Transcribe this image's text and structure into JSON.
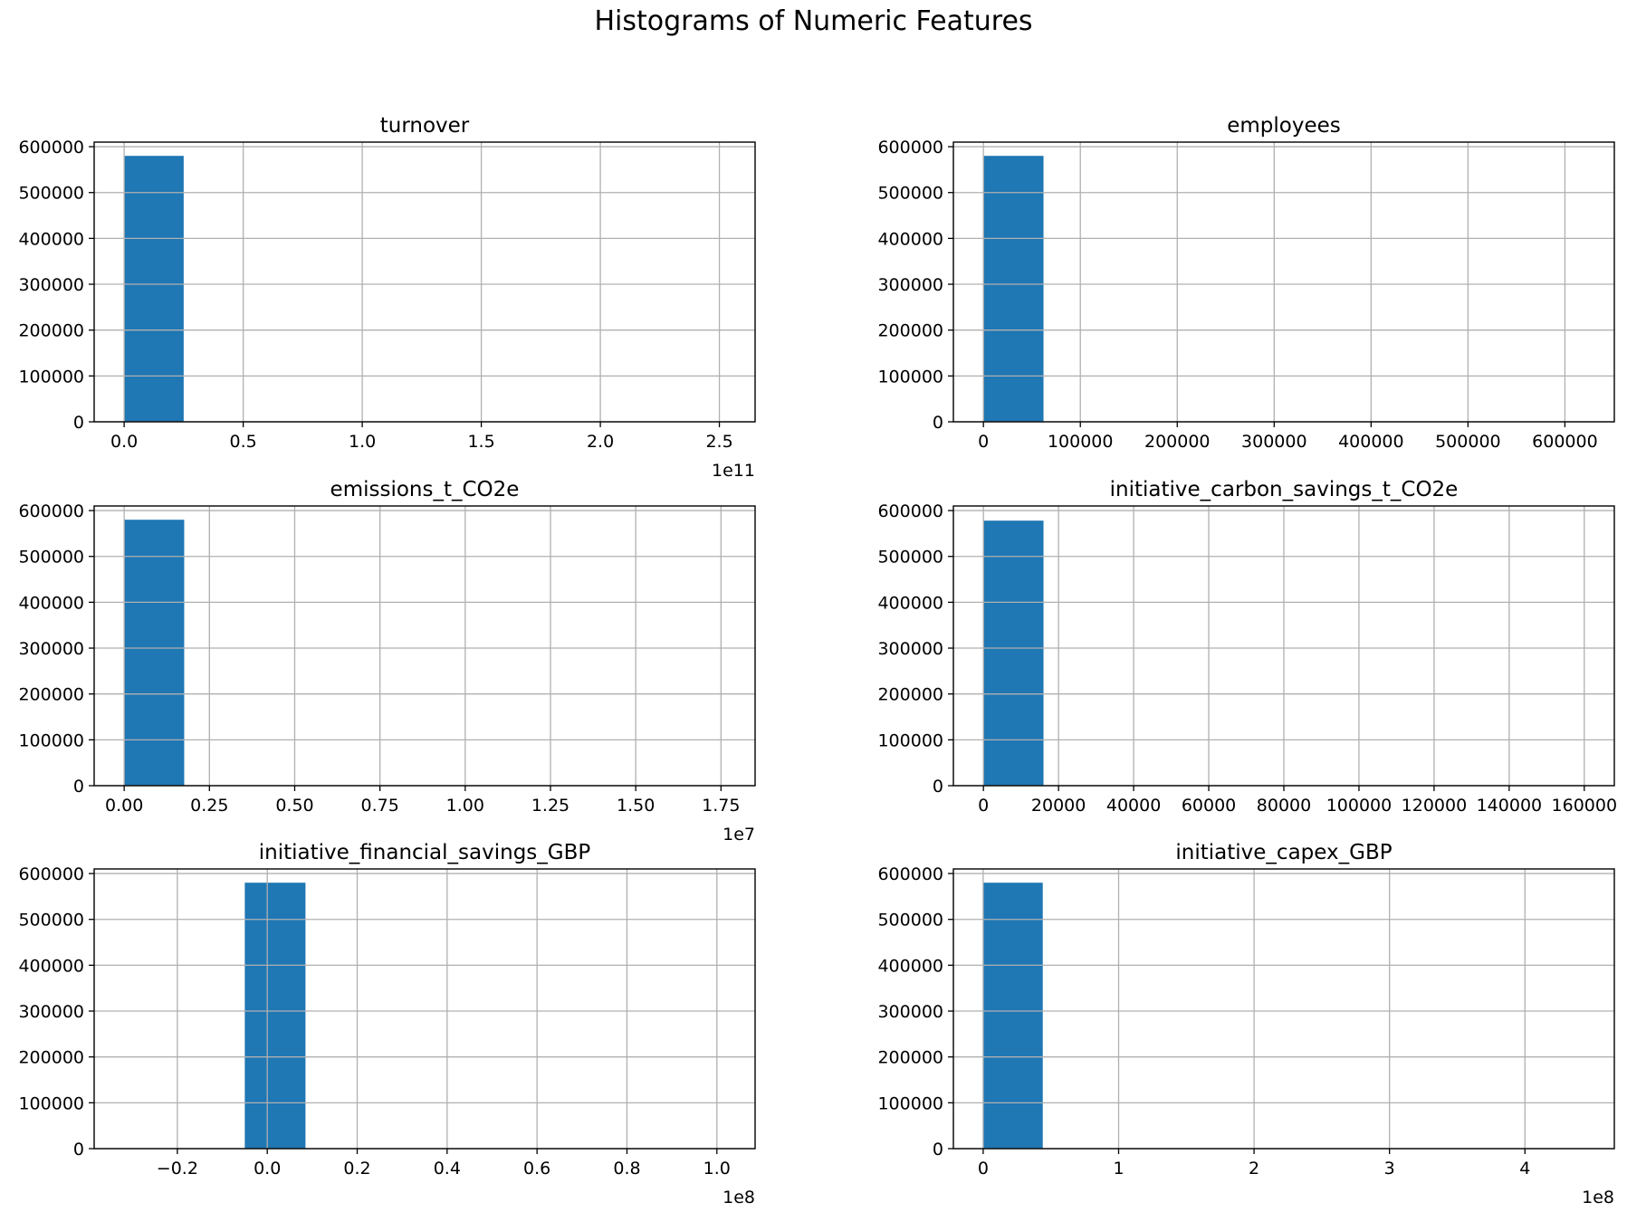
{
  "figure": {
    "title": "Histograms of Numeric Features",
    "bar_color": "#1f77b4",
    "grid_color": "#b0b0b0"
  },
  "chart_data": [
    {
      "type": "bar",
      "title": "turnover",
      "xlim": [
        -0.126,
        2.65
      ],
      "ylim": [
        0,
        610000
      ],
      "xticks": [
        0.0,
        0.5,
        1.0,
        1.5,
        2.0,
        2.5
      ],
      "xtick_labels": [
        "0.0",
        "0.5",
        "1.0",
        "1.5",
        "2.0",
        "2.5"
      ],
      "x_offset_label": "1e11",
      "yticks": [
        0,
        100000,
        200000,
        300000,
        400000,
        500000,
        600000
      ],
      "ytick_labels": [
        "0",
        "100000",
        "200000",
        "300000",
        "400000",
        "500000",
        "600000"
      ],
      "grid": true,
      "bins": [
        {
          "x0": 0.0,
          "x1": 0.25,
          "value": 580000
        }
      ]
    },
    {
      "type": "bar",
      "title": "employees",
      "xlim": [
        -31000,
        651000
      ],
      "ylim": [
        0,
        610000
      ],
      "xticks": [
        0,
        100000,
        200000,
        300000,
        400000,
        500000,
        600000
      ],
      "xtick_labels": [
        "0",
        "100000",
        "200000",
        "300000",
        "400000",
        "500000",
        "600000"
      ],
      "x_offset_label": "",
      "yticks": [
        0,
        100000,
        200000,
        300000,
        400000,
        500000,
        600000
      ],
      "ytick_labels": [
        "0",
        "100000",
        "200000",
        "300000",
        "400000",
        "500000",
        "600000"
      ],
      "grid": true,
      "bins": [
        {
          "x0": 0,
          "x1": 62000,
          "value": 580000
        }
      ]
    },
    {
      "type": "bar",
      "title": "emissions_t_CO2e",
      "xlim": [
        -0.088,
        1.85
      ],
      "ylim": [
        0,
        610000
      ],
      "xticks": [
        0.0,
        0.25,
        0.5,
        0.75,
        1.0,
        1.25,
        1.5,
        1.75
      ],
      "xtick_labels": [
        "0.00",
        "0.25",
        "0.50",
        "0.75",
        "1.00",
        "1.25",
        "1.50",
        "1.75"
      ],
      "x_offset_label": "1e7",
      "yticks": [
        0,
        100000,
        200000,
        300000,
        400000,
        500000,
        600000
      ],
      "ytick_labels": [
        "0",
        "100000",
        "200000",
        "300000",
        "400000",
        "500000",
        "600000"
      ],
      "grid": true,
      "bins": [
        {
          "x0": 0.0,
          "x1": 0.176,
          "value": 580000
        }
      ]
    },
    {
      "type": "bar",
      "title": "initiative_carbon_savings_t_CO2e",
      "xlim": [
        -8000,
        168000
      ],
      "ylim": [
        0,
        610000
      ],
      "xticks": [
        0,
        20000,
        40000,
        60000,
        80000,
        100000,
        120000,
        140000,
        160000
      ],
      "xtick_labels": [
        "0",
        "20000",
        "40000",
        "60000",
        "80000",
        "100000",
        "120000",
        "140000",
        "160000"
      ],
      "x_offset_label": "",
      "yticks": [
        0,
        100000,
        200000,
        300000,
        400000,
        500000,
        600000
      ],
      "ytick_labels": [
        "0",
        "100000",
        "200000",
        "300000",
        "400000",
        "500000",
        "600000"
      ],
      "grid": true,
      "bins": [
        {
          "x0": 0,
          "x1": 16000,
          "value": 578000
        }
      ]
    },
    {
      "type": "bar",
      "title": "initiative_financial_savings_GBP",
      "xlim": [
        -0.385,
        1.085
      ],
      "ylim": [
        0,
        610000
      ],
      "xticks": [
        -0.2,
        0.0,
        0.2,
        0.4,
        0.6,
        0.8,
        1.0
      ],
      "xtick_labels": [
        "−0.2",
        "0.0",
        "0.2",
        "0.4",
        "0.6",
        "0.8",
        "1.0"
      ],
      "x_offset_label": "1e8",
      "yticks": [
        0,
        100000,
        200000,
        300000,
        400000,
        500000,
        600000
      ],
      "ytick_labels": [
        "0",
        "100000",
        "200000",
        "300000",
        "400000",
        "500000",
        "600000"
      ],
      "grid": true,
      "bins": [
        {
          "x0": -0.05,
          "x1": 0.085,
          "value": 580000
        }
      ]
    },
    {
      "type": "bar",
      "title": "initiative_capex_GBP",
      "xlim": [
        -0.22,
        4.66
      ],
      "ylim": [
        0,
        610000
      ],
      "xticks": [
        0,
        1,
        2,
        3,
        4
      ],
      "xtick_labels": [
        "0",
        "1",
        "2",
        "3",
        "4"
      ],
      "x_offset_label": "1e8",
      "yticks": [
        0,
        100000,
        200000,
        300000,
        400000,
        500000,
        600000
      ],
      "ytick_labels": [
        "0",
        "100000",
        "200000",
        "300000",
        "400000",
        "500000",
        "600000"
      ],
      "grid": true,
      "bins": [
        {
          "x0": 0.0,
          "x1": 0.44,
          "value": 580000
        }
      ]
    }
  ]
}
